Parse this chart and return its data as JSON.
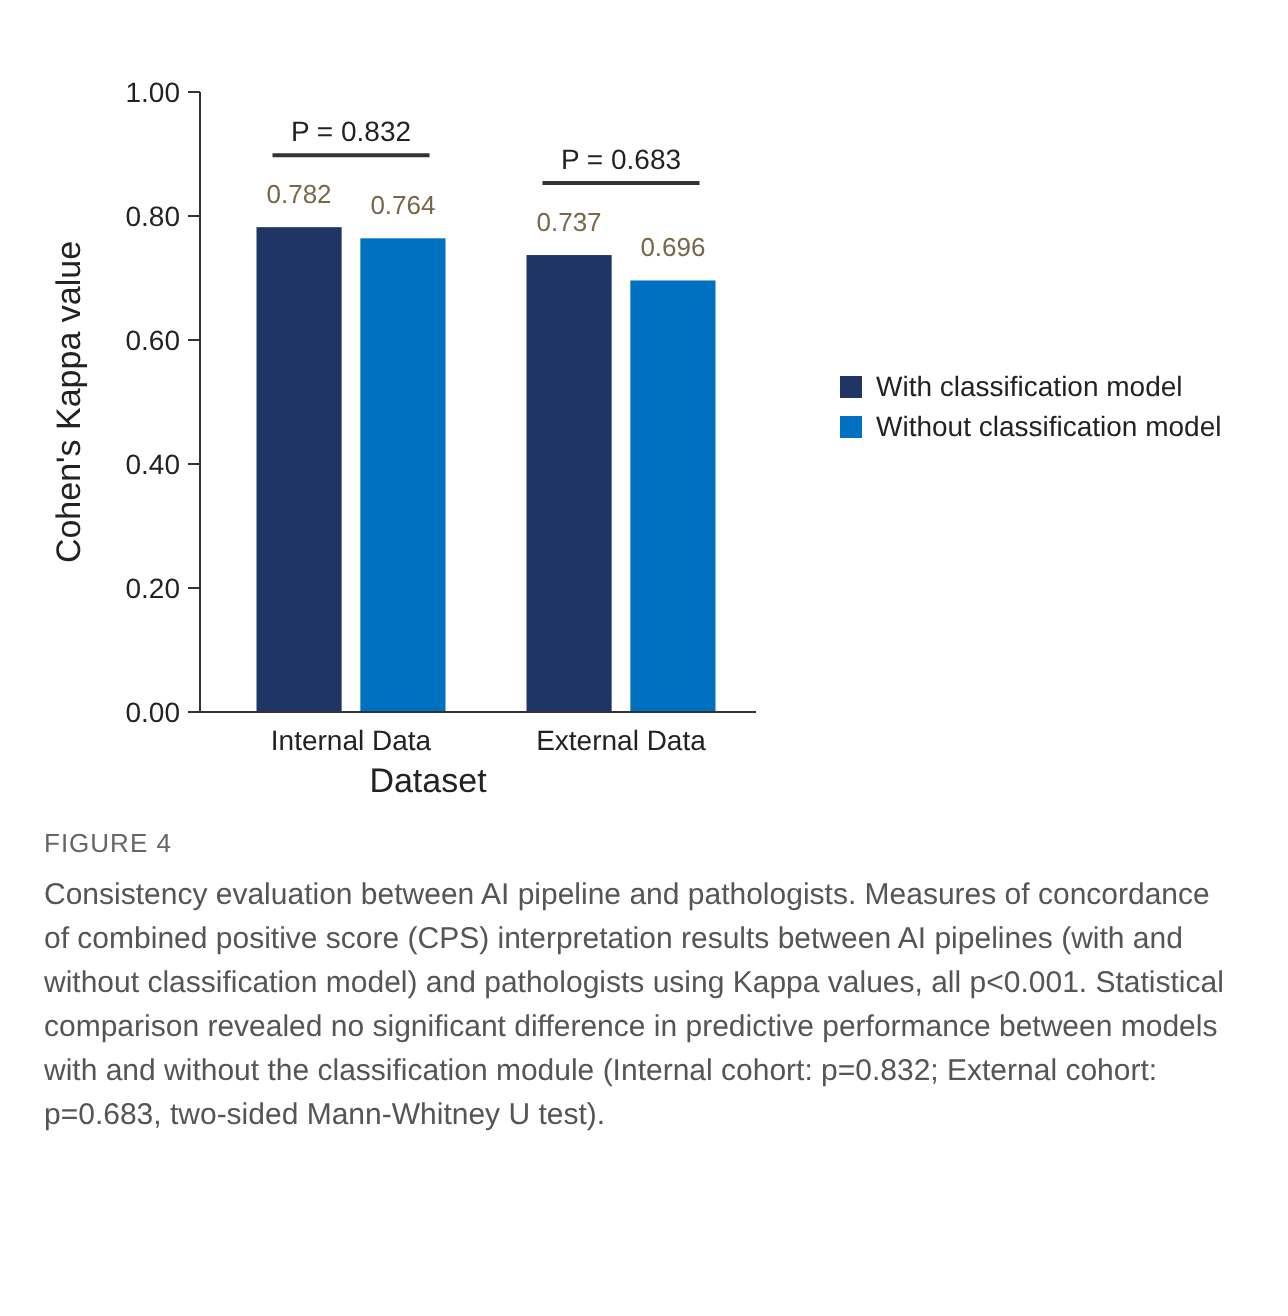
{
  "chart_data": {
    "type": "bar",
    "ylabel": "Cohen's Kappa value",
    "xlabel": "Dataset",
    "categories": [
      "Internal Data",
      "External Data"
    ],
    "series": [
      {
        "name": "With classification model",
        "color": "#1f3566",
        "values": [
          0.782,
          0.737
        ]
      },
      {
        "name": "Without classification model",
        "color": "#0070c0",
        "values": [
          0.764,
          0.696
        ]
      }
    ],
    "ylim": [
      0,
      1
    ],
    "yticks": [
      {
        "value": 0,
        "label": "0.00"
      },
      {
        "value": 0.2,
        "label": "0.20"
      },
      {
        "value": 0.4,
        "label": "0.40"
      },
      {
        "value": 0.6,
        "label": "0.60"
      },
      {
        "value": 0.8,
        "label": "0.80"
      },
      {
        "value": 1,
        "label": "1.00"
      }
    ],
    "data_labels": true,
    "legend": "right",
    "grid": false,
    "annotations": [
      "P = 0.832",
      "P = 0.683",
      "FIGURE 4",
      "Consistency evaluation between AI pipeline and pathologists. Measures of concordance of combined positive score (CPS) interpretation results between AI pipelines (with and without classification model) and pathologists using Kappa values, all p<0.001. Statistical comparison revealed no significant difference in predictive performance between models with and without the classification module (Internal cohort: p=0.832; External cohort: p=0.683, two-sided Mann-Whitney U test)."
    ]
  }
}
